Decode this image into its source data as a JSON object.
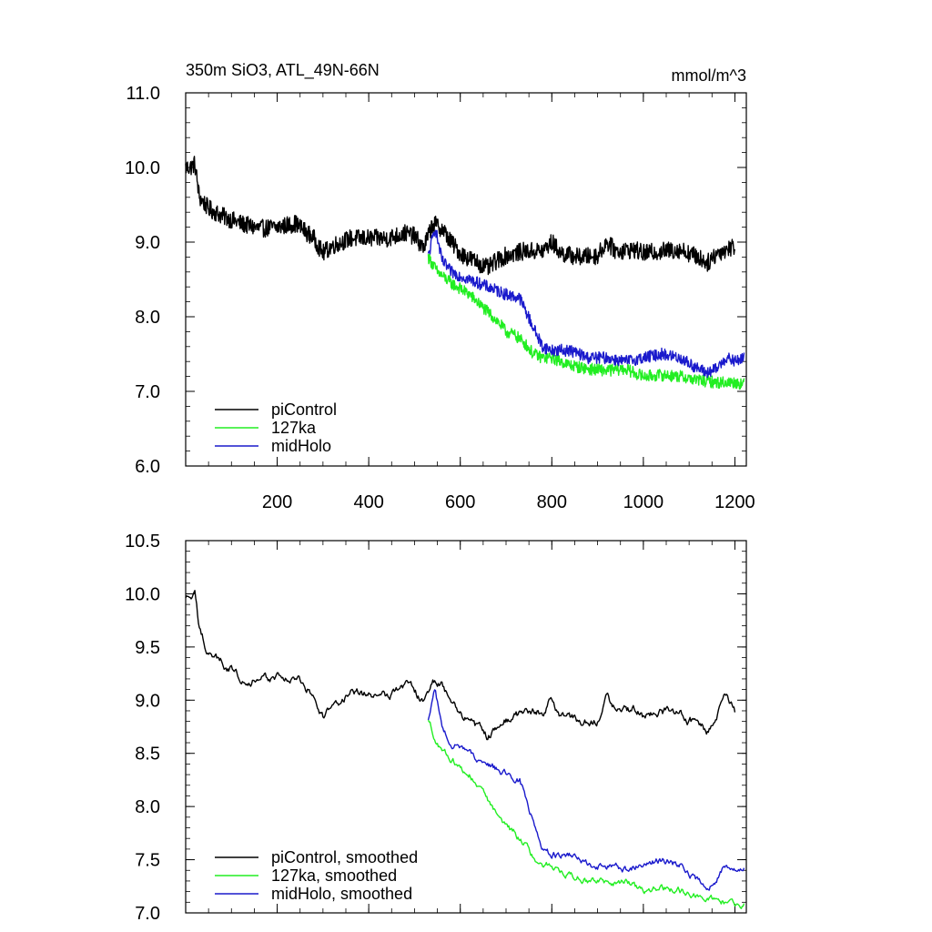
{
  "title_left": "350m SiO3, ATL_49N-66N",
  "title_right": "mmol/m^3",
  "colors": {
    "piControl": "#000000",
    "127ka": "#22ee22",
    "midHolo": "#1a1acc"
  },
  "chart_data": [
    {
      "type": "line",
      "x_range": [
        0,
        1225
      ],
      "ylim": [
        6.0,
        11.0
      ],
      "yticks": [
        6.0,
        7.0,
        8.0,
        9.0,
        10.0,
        11.0
      ],
      "ytick_labels": [
        "6.0",
        "7.0",
        "8.0",
        "9.0",
        "10.0",
        "11.0"
      ],
      "xticks": [
        200,
        400,
        600,
        800,
        1000,
        1200
      ],
      "xtick_labels": [
        "200",
        "400",
        "600",
        "800",
        "1000",
        "1200"
      ],
      "legend_placement": "bottom-left",
      "legend": [
        "piControl",
        "127ka",
        "midHolo"
      ],
      "series": [
        {
          "name": "piControl",
          "color": "#000000",
          "noise": 0.12,
          "x": [
            0,
            10,
            20,
            30,
            50,
            80,
            120,
            160,
            200,
            240,
            280,
            300,
            320,
            360,
            400,
            440,
            480,
            500,
            520,
            540,
            560,
            580,
            600,
            620,
            640,
            660,
            680,
            700,
            740,
            780,
            800,
            820,
            860,
            900,
            920,
            940,
            980,
            1000,
            1040,
            1080,
            1100,
            1120,
            1140,
            1160,
            1180,
            1200
          ],
          "y": [
            10.0,
            10.0,
            10.05,
            9.6,
            9.45,
            9.35,
            9.25,
            9.18,
            9.2,
            9.25,
            9.05,
            8.85,
            8.95,
            9.05,
            9.05,
            9.05,
            9.12,
            9.08,
            8.92,
            9.25,
            9.18,
            9.0,
            8.85,
            8.78,
            8.72,
            8.65,
            8.75,
            8.82,
            8.88,
            8.88,
            9.0,
            8.85,
            8.8,
            8.82,
            9.0,
            8.88,
            8.9,
            8.85,
            8.88,
            8.9,
            8.85,
            8.8,
            8.72,
            8.85,
            8.9,
            8.95
          ]
        },
        {
          "name": "127ka",
          "color": "#22ee22",
          "noise": 0.08,
          "x": [
            530,
            550,
            580,
            620,
            650,
            680,
            700,
            720,
            740,
            760,
            780,
            800,
            840,
            880,
            920,
            960,
            1000,
            1040,
            1080,
            1120,
            1160,
            1180,
            1200,
            1220
          ],
          "y": [
            8.8,
            8.6,
            8.45,
            8.3,
            8.12,
            7.95,
            7.8,
            7.75,
            7.65,
            7.5,
            7.45,
            7.45,
            7.35,
            7.3,
            7.28,
            7.3,
            7.2,
            7.22,
            7.2,
            7.15,
            7.12,
            7.12,
            7.12,
            7.1
          ]
        },
        {
          "name": "midHolo",
          "color": "#1a1acc",
          "noise": 0.08,
          "x": [
            530,
            545,
            560,
            580,
            620,
            660,
            700,
            730,
            760,
            780,
            800,
            840,
            880,
            920,
            960,
            1000,
            1040,
            1080,
            1120,
            1140,
            1160,
            1180,
            1200,
            1220
          ],
          "y": [
            8.8,
            9.2,
            8.75,
            8.6,
            8.5,
            8.4,
            8.3,
            8.25,
            7.85,
            7.6,
            7.55,
            7.55,
            7.45,
            7.45,
            7.4,
            7.45,
            7.5,
            7.45,
            7.3,
            7.25,
            7.3,
            7.45,
            7.4,
            7.45
          ]
        }
      ]
    },
    {
      "type": "line",
      "x_range": [
        0,
        1225
      ],
      "ylim": [
        7.0,
        10.5
      ],
      "yticks": [
        7.0,
        7.5,
        8.0,
        8.5,
        9.0,
        9.5,
        10.0,
        10.5
      ],
      "ytick_labels": [
        "7.0",
        "7.5",
        "8.0",
        "8.5",
        "9.0",
        "9.5",
        "10.0",
        "10.5"
      ],
      "xticks": [
        200,
        400,
        600,
        800,
        1000,
        1200
      ],
      "xtick_labels": [],
      "legend_placement": "bottom-left",
      "legend": [
        "piControl, smoothed",
        "127ka, smoothed",
        "midHolo, smoothed"
      ],
      "series": [
        {
          "name": "piControl, smoothed",
          "color": "#000000",
          "noise": 0.05,
          "x": [
            0,
            10,
            20,
            30,
            50,
            80,
            120,
            160,
            200,
            240,
            280,
            300,
            320,
            360,
            400,
            440,
            480,
            500,
            520,
            540,
            560,
            580,
            600,
            620,
            640,
            660,
            680,
            700,
            740,
            780,
            800,
            820,
            860,
            900,
            920,
            940,
            980,
            1000,
            1040,
            1080,
            1100,
            1120,
            1140,
            1160,
            1180,
            1200
          ],
          "y": [
            9.95,
            9.95,
            9.98,
            9.65,
            9.45,
            9.35,
            9.22,
            9.18,
            9.22,
            9.2,
            9.05,
            8.85,
            8.95,
            9.05,
            9.05,
            9.05,
            9.15,
            9.1,
            8.95,
            9.2,
            9.15,
            9.0,
            8.88,
            8.8,
            8.72,
            8.65,
            8.75,
            8.82,
            8.88,
            8.9,
            9.0,
            8.85,
            8.8,
            8.82,
            9.1,
            8.9,
            8.9,
            8.85,
            8.88,
            8.9,
            8.82,
            8.8,
            8.72,
            8.85,
            9.05,
            8.88
          ]
        },
        {
          "name": "127ka, smoothed",
          "color": "#22ee22",
          "noise": 0.04,
          "x": [
            530,
            550,
            580,
            620,
            650,
            680,
            700,
            720,
            740,
            760,
            780,
            800,
            840,
            880,
            920,
            960,
            1000,
            1040,
            1080,
            1120,
            1160,
            1180,
            1200,
            1220
          ],
          "y": [
            8.8,
            8.6,
            8.45,
            8.3,
            8.12,
            7.95,
            7.8,
            7.75,
            7.65,
            7.5,
            7.45,
            7.45,
            7.35,
            7.3,
            7.28,
            7.3,
            7.2,
            7.22,
            7.2,
            7.15,
            7.12,
            7.1,
            7.08,
            7.08
          ]
        },
        {
          "name": "midHolo, smoothed",
          "color": "#1a1acc",
          "noise": 0.04,
          "x": [
            530,
            545,
            560,
            580,
            620,
            660,
            700,
            730,
            760,
            780,
            800,
            840,
            880,
            920,
            960,
            1000,
            1040,
            1080,
            1120,
            1140,
            1160,
            1180,
            1200,
            1220
          ],
          "y": [
            8.8,
            9.1,
            8.75,
            8.6,
            8.5,
            8.4,
            8.3,
            8.25,
            7.85,
            7.6,
            7.55,
            7.55,
            7.45,
            7.45,
            7.4,
            7.45,
            7.5,
            7.45,
            7.3,
            7.25,
            7.3,
            7.45,
            7.4,
            7.45
          ]
        }
      ]
    }
  ]
}
